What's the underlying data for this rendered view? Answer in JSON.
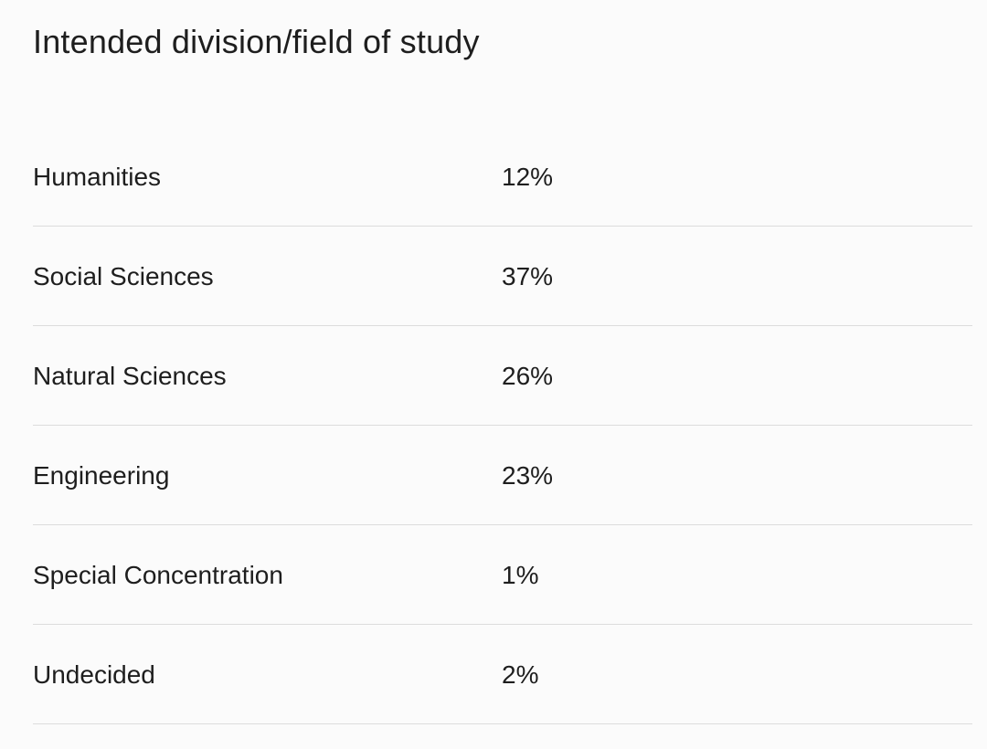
{
  "section": {
    "title": "Intended division/field of study"
  },
  "rows": [
    {
      "label": "Humanities",
      "value": "12%"
    },
    {
      "label": "Social Sciences",
      "value": "37%"
    },
    {
      "label": "Natural Sciences",
      "value": "26%"
    },
    {
      "label": "Engineering",
      "value": "23%"
    },
    {
      "label": "Special Concentration",
      "value": "1%"
    },
    {
      "label": "Undecided",
      "value": "2%"
    }
  ]
}
